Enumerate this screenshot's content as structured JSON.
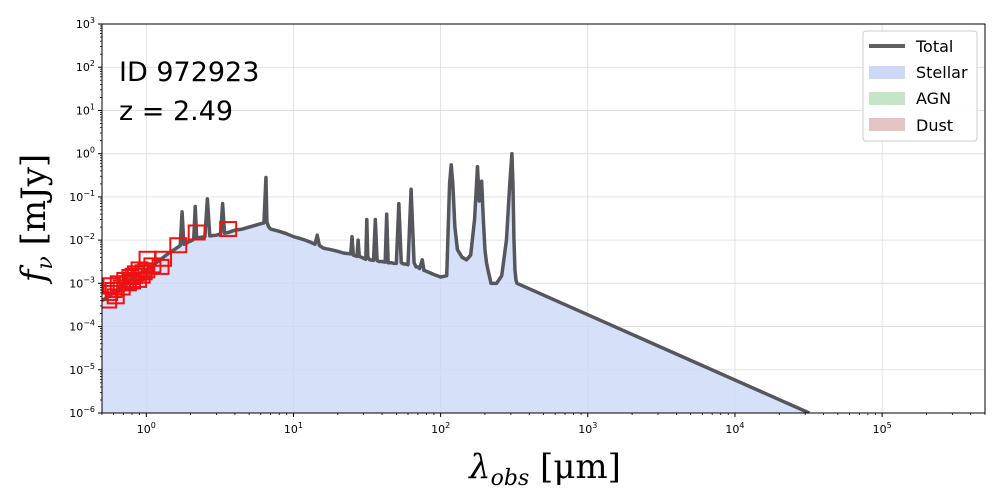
{
  "chart_data": {
    "type": "line",
    "x_scale": "log",
    "y_scale": "log",
    "xlim": [
      0.5,
      500000
    ],
    "ylim": [
      1e-06,
      1000
    ],
    "grid": true,
    "legend_position": "top-right",
    "annotations": [
      "ID 972923",
      "z = 2.49"
    ],
    "x_ticks": [
      {
        "value": 1,
        "base": "10",
        "exp": "0"
      },
      {
        "value": 10,
        "base": "10",
        "exp": "1"
      },
      {
        "value": 100,
        "base": "10",
        "exp": "2"
      },
      {
        "value": 1000,
        "base": "10",
        "exp": "3"
      },
      {
        "value": 10000,
        "base": "10",
        "exp": "4"
      },
      {
        "value": 100000,
        "base": "10",
        "exp": "5"
      }
    ],
    "y_ticks": [
      {
        "value": 1e-06,
        "base": "10",
        "exp": "−6"
      },
      {
        "value": 1e-05,
        "base": "10",
        "exp": "−5"
      },
      {
        "value": 0.0001,
        "base": "10",
        "exp": "−4"
      },
      {
        "value": 0.001,
        "base": "10",
        "exp": "−3"
      },
      {
        "value": 0.01,
        "base": "10",
        "exp": "−2"
      },
      {
        "value": 0.1,
        "base": "10",
        "exp": "−1"
      },
      {
        "value": 1,
        "base": "10",
        "exp": "0"
      },
      {
        "value": 10,
        "base": "10",
        "exp": "1"
      },
      {
        "value": 100,
        "base": "10",
        "exp": "2"
      },
      {
        "value": 1000,
        "base": "10",
        "exp": "3"
      }
    ],
    "xlabel": {
      "main": "λ",
      "sub": "obs",
      "rest": " [μm]"
    },
    "ylabel": {
      "main": "f",
      "sub": "ν",
      "rest": " [mJy]"
    },
    "legend": [
      {
        "name": "Total",
        "kind": "line",
        "color": "#5f5f5f"
      },
      {
        "name": "Stellar",
        "kind": "patch",
        "color": "#ccd8f6"
      },
      {
        "name": "AGN",
        "kind": "patch",
        "color": "#c6e5c6"
      },
      {
        "name": "Dust",
        "kind": "patch",
        "color": "#e3c3c3"
      }
    ],
    "series": [
      {
        "name": "Total",
        "color": "#55575d",
        "x": [
          0.5,
          0.6,
          0.7,
          0.8,
          0.9,
          1.0,
          1.2,
          1.4,
          1.6,
          1.7,
          1.75,
          1.8,
          1.9,
          2.0,
          2.1,
          2.15,
          2.2,
          2.3,
          2.5,
          2.6,
          2.7,
          3.0,
          3.2,
          3.3,
          3.4,
          3.6,
          3.8,
          4.0,
          4.5,
          5.0,
          5.5,
          6.0,
          6.3,
          6.5,
          6.6,
          6.8,
          7.0,
          8.0,
          9.0,
          10.0,
          11.0,
          12.0,
          13.0,
          14.0,
          14.5,
          15.0,
          16.0,
          18.0,
          20.0,
          22.0,
          24.5,
          25.0,
          25.5,
          27.0,
          27.5,
          28.0,
          29.0,
          30.0,
          31.0,
          31.5,
          32.0,
          33.0,
          35.0,
          36.0,
          37.0,
          38.0,
          40.0,
          42.0,
          43.0,
          44.0,
          46.0,
          48.0,
          50.0,
          52.0,
          54.0,
          56.0,
          58.0,
          60.0,
          63.0,
          66.0,
          68.0,
          70.0,
          72.0,
          75.0,
          77.0,
          80.0,
          90.0,
          100.0,
          110.0,
          115.0,
          118.0,
          121.0,
          125.0,
          130.0,
          140.0,
          150.0,
          160.0,
          170.0,
          178.0,
          183.0,
          190.0,
          195.0,
          200.0,
          205.0,
          210.0,
          220.0,
          240.0,
          260.0,
          280.0,
          295.0,
          305.0,
          310.0,
          315.0,
          320.0,
          325.0,
          330.0,
          32000.0
        ],
        "y": [
          0.0004,
          0.0006,
          0.0009,
          0.0013,
          0.0017,
          0.002,
          0.0032,
          0.0048,
          0.0065,
          0.0075,
          0.045,
          0.008,
          0.0088,
          0.0095,
          0.0105,
          0.06,
          0.011,
          0.0115,
          0.012,
          0.09,
          0.0125,
          0.013,
          0.014,
          0.07,
          0.0145,
          0.015,
          0.016,
          0.017,
          0.018,
          0.02,
          0.022,
          0.024,
          0.025,
          0.28,
          0.026,
          0.02,
          0.018,
          0.016,
          0.014,
          0.012,
          0.011,
          0.01,
          0.009,
          0.008,
          0.013,
          0.0075,
          0.0065,
          0.006,
          0.0055,
          0.005,
          0.0048,
          0.012,
          0.0045,
          0.0042,
          0.01,
          0.0042,
          0.004,
          0.0038,
          0.0036,
          0.03,
          0.004,
          0.0035,
          0.0034,
          0.03,
          0.0034,
          0.0032,
          0.0032,
          0.0031,
          0.04,
          0.003,
          0.003,
          0.0029,
          0.0029,
          0.07,
          0.003,
          0.0028,
          0.0028,
          0.0027,
          0.15,
          0.003,
          0.0024,
          0.0024,
          0.0022,
          0.0035,
          0.002,
          0.0019,
          0.0016,
          0.0014,
          0.0015,
          0.2,
          0.55,
          0.2,
          0.02,
          0.006,
          0.004,
          0.0035,
          0.0045,
          0.03,
          0.5,
          0.08,
          0.23,
          0.03,
          0.006,
          0.003,
          0.002,
          0.001,
          0.001,
          0.0015,
          0.01,
          0.2,
          1.0,
          0.2,
          0.01,
          0.002,
          0.0012,
          0.001,
          1e-06
        ]
      }
    ],
    "observations": {
      "name": "Photometry",
      "color": "#ee1111",
      "points": [
        {
          "x": 0.55,
          "y": 0.0004
        },
        {
          "x": 0.56,
          "y": 0.0006
        },
        {
          "x": 0.58,
          "y": 0.0009
        },
        {
          "x": 0.6,
          "y": 0.0007
        },
        {
          "x": 0.62,
          "y": 0.0005
        },
        {
          "x": 0.65,
          "y": 0.001
        },
        {
          "x": 0.68,
          "y": 0.0008
        },
        {
          "x": 0.72,
          "y": 0.0012
        },
        {
          "x": 0.75,
          "y": 0.001
        },
        {
          "x": 0.78,
          "y": 0.0014
        },
        {
          "x": 0.8,
          "y": 0.0011
        },
        {
          "x": 0.82,
          "y": 0.0015
        },
        {
          "x": 0.85,
          "y": 0.0017
        },
        {
          "x": 0.88,
          "y": 0.0012
        },
        {
          "x": 0.9,
          "y": 0.0021
        },
        {
          "x": 0.93,
          "y": 0.0015
        },
        {
          "x": 0.96,
          "y": 0.0018
        },
        {
          "x": 1.0,
          "y": 0.002
        },
        {
          "x": 1.02,
          "y": 0.0037
        },
        {
          "x": 1.1,
          "y": 0.0026
        },
        {
          "x": 1.25,
          "y": 0.0024
        },
        {
          "x": 1.3,
          "y": 0.0037
        },
        {
          "x": 1.65,
          "y": 0.0076
        },
        {
          "x": 2.2,
          "y": 0.015
        },
        {
          "x": 3.6,
          "y": 0.018
        }
      ]
    }
  }
}
